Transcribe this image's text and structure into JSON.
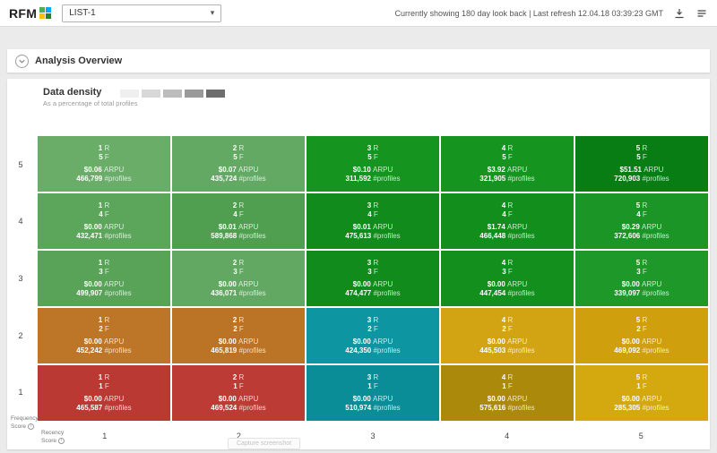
{
  "header": {
    "logo_text": "RFM",
    "logo_colors": [
      "#4caf50",
      "#03a9f4",
      "#ffc107",
      "#2e7d32"
    ],
    "list_selected": "LIST-1",
    "status_text": "Currently showing 180 day look back | Last refresh 12.04.18 03:39:23 GMT"
  },
  "section": {
    "title": "Analysis Overview"
  },
  "panel": {
    "legend_title": "Data density",
    "legend_subtitle": "As a percentage of total profiles",
    "legend_swatches": [
      "#efefef",
      "#d8d8d8",
      "#bcbcbc",
      "#9a9a9a",
      "#6d6d6d"
    ],
    "y_axis_label_line1": "Frequency",
    "y_axis_label_line2": "Score",
    "x_axis_label_line1": "Recency",
    "x_axis_label_line2": "Score",
    "capture_button_label": "Capture screenshot"
  },
  "chart_data": {
    "type": "heatmap",
    "x_axis_title": "Recency Score",
    "y_axis_title": "Frequency Score",
    "x_ticks": [
      "1",
      "2",
      "3",
      "4",
      "5"
    ],
    "y_ticks": [
      "5",
      "4",
      "3",
      "2",
      "1"
    ],
    "cell_labels": {
      "r": "R",
      "f": "F",
      "arpu": "ARPU",
      "profiles": "#profiles"
    },
    "cells": [
      {
        "r": "1",
        "f": "5",
        "arpu": "$0.06",
        "profiles": "466,799",
        "color": "#69ad69"
      },
      {
        "r": "2",
        "f": "5",
        "arpu": "$0.07",
        "profiles": "435,724",
        "color": "#63a963"
      },
      {
        "r": "3",
        "f": "5",
        "arpu": "$0.10",
        "profiles": "311,592",
        "color": "#15951f"
      },
      {
        "r": "4",
        "f": "5",
        "arpu": "$3.92",
        "profiles": "321,905",
        "color": "#15951f"
      },
      {
        "r": "5",
        "f": "5",
        "arpu": "$51.51",
        "profiles": "720,903",
        "color": "#087d14"
      },
      {
        "r": "1",
        "f": "4",
        "arpu": "$0.00",
        "profiles": "432,471",
        "color": "#5ca65c"
      },
      {
        "r": "2",
        "f": "4",
        "arpu": "$0.01",
        "profiles": "589,868",
        "color": "#509f50"
      },
      {
        "r": "3",
        "f": "4",
        "arpu": "$0.01",
        "profiles": "475,613",
        "color": "#118c1c"
      },
      {
        "r": "4",
        "f": "4",
        "arpu": "$1.74",
        "profiles": "466,448",
        "color": "#128e1d"
      },
      {
        "r": "5",
        "f": "4",
        "arpu": "$0.29",
        "profiles": "372,606",
        "color": "#1b9526"
      },
      {
        "r": "1",
        "f": "3",
        "arpu": "$0.00",
        "profiles": "499,907",
        "color": "#58a358"
      },
      {
        "r": "2",
        "f": "3",
        "arpu": "$0.00",
        "profiles": "436,071",
        "color": "#62a862"
      },
      {
        "r": "3",
        "f": "3",
        "arpu": "$0.00",
        "profiles": "474,477",
        "color": "#118c1c"
      },
      {
        "r": "4",
        "f": "3",
        "arpu": "$0.00",
        "profiles": "447,454",
        "color": "#138f1e"
      },
      {
        "r": "5",
        "f": "3",
        "arpu": "$0.00",
        "profiles": "339,097",
        "color": "#1e9829"
      },
      {
        "r": "1",
        "f": "2",
        "arpu": "$0.00",
        "profiles": "452,242",
        "color": "#bd7527"
      },
      {
        "r": "2",
        "f": "2",
        "arpu": "$0.00",
        "profiles": "465,819",
        "color": "#bb7425"
      },
      {
        "r": "3",
        "f": "2",
        "arpu": "$0.00",
        "profiles": "424,350",
        "color": "#0d96a1"
      },
      {
        "r": "4",
        "f": "2",
        "arpu": "$0.00",
        "profiles": "445,503",
        "color": "#d2a312"
      },
      {
        "r": "5",
        "f": "2",
        "arpu": "$0.00",
        "profiles": "469,092",
        "color": "#cf9f0e"
      },
      {
        "r": "1",
        "f": "1",
        "arpu": "$0.00",
        "profiles": "465,587",
        "color": "#ba3a33"
      },
      {
        "r": "2",
        "f": "1",
        "arpu": "$0.00",
        "profiles": "469,524",
        "color": "#bc3c35"
      },
      {
        "r": "3",
        "f": "1",
        "arpu": "$0.00",
        "profiles": "510,974",
        "color": "#0b8d98"
      },
      {
        "r": "4",
        "f": "1",
        "arpu": "$0.00",
        "profiles": "575,616",
        "color": "#aa890b"
      },
      {
        "r": "5",
        "f": "1",
        "arpu": "$0.00",
        "profiles": "285,305",
        "color": "#d3a90f"
      }
    ]
  }
}
